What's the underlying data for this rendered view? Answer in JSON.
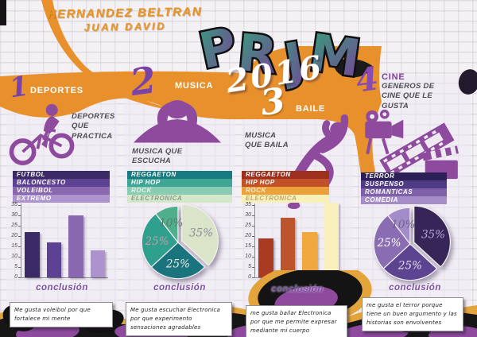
{
  "header": {
    "author_line1": "HERNANDEZ BELTRAN",
    "author_line2": "JUAN DAVID",
    "title": "PRJM",
    "year": "2016"
  },
  "sections": [
    {
      "number": "1",
      "name": "DEPORTES",
      "subtitle": "DEPORTES\nQUE\nPRACTICA",
      "items": [
        {
          "label": "FUTBOL",
          "bg": "#3c2a67",
          "fg": "#ffffff"
        },
        {
          "label": "BALONCESTO",
          "bg": "#5d4192",
          "fg": "#ffffff"
        },
        {
          "label": "VOLEIBOL",
          "bg": "#8a68b0",
          "fg": "#ffffff"
        },
        {
          "label": "EXTREMO",
          "bg": "#ad93ce",
          "fg": "#ffffff"
        }
      ],
      "conclusion_label": "conclusión",
      "note": "Me gusta voleibol por que fortalece mi mente"
    },
    {
      "number": "2",
      "name": "MUSICA",
      "subtitle": "MUSICA QUE\nESCUCHA",
      "items": [
        {
          "label": "REGGAETON",
          "bg": "#177b81",
          "fg": "#ffffff"
        },
        {
          "label": "HIP HOP",
          "bg": "#3fa695",
          "fg": "#ffffff"
        },
        {
          "label": "ROCK",
          "bg": "#8acbb4",
          "fg": "#e8f3ec"
        },
        {
          "label": "ELECTRONICA",
          "bg": "#d3e7c9",
          "fg": "#8a9a8a"
        }
      ],
      "conclusion_label": "conclusión",
      "note": "Me gusta escuchar Electronica por que experimento sensaciones agradables"
    },
    {
      "number": "3",
      "name": "BAILE",
      "subtitle": "MUSICA\nQUE BAILA",
      "items": [
        {
          "label": "REGGAETON",
          "bg": "#9c301c",
          "fg": "#ffffff"
        },
        {
          "label": "HIP HOP",
          "bg": "#c2512a",
          "fg": "#ffffff"
        },
        {
          "label": "ROCK",
          "bg": "#eca23b",
          "fg": "#f8ebc9"
        },
        {
          "label": "ELECTRONICA",
          "bg": "#f8efb9",
          "fg": "#bfa96d"
        }
      ],
      "conclusion_label": "conclusión",
      "note": "me gusta bailar Electronica por que me permite expresar mediante mi cuerpo"
    },
    {
      "number": "4",
      "name": "CINE",
      "subtitle": "GENEROS DE\nCINE QUE LE\nGUSTA",
      "items": [
        {
          "label": "TERROR",
          "bg": "#2c2157",
          "fg": "#ffffff"
        },
        {
          "label": "SUSPENSO",
          "bg": "#4f3c85",
          "fg": "#ffffff"
        },
        {
          "label": "ROMANTICAS",
          "bg": "#7e61a8",
          "fg": "#ffffff"
        },
        {
          "label": "COMEDIA",
          "bg": "#a68dc8",
          "fg": "#ffffff"
        }
      ],
      "conclusion_label": "conclusión",
      "note": "me gusta el terror porque tiene un buen argumento y las historias son envolventes"
    }
  ],
  "chart_data": [
    {
      "type": "bar",
      "section": "DEPORTES",
      "title": "",
      "values": [
        22,
        17,
        30,
        13
      ],
      "colors": [
        "#3c2a67",
        "#5d4192",
        "#8a68b0",
        "#ad93ce"
      ],
      "ylim": [
        0,
        35
      ],
      "yticks": [
        0,
        5,
        10,
        15,
        20,
        25,
        30,
        35
      ],
      "grid": false,
      "xlabel": "",
      "ylabel": ""
    },
    {
      "type": "pie",
      "section": "MUSICA",
      "title": "",
      "values": [
        35,
        25,
        25,
        10
      ],
      "labels": [
        "35%",
        "25%",
        "25%",
        "10%"
      ],
      "colors": [
        "#d9e4c9",
        "#19747e",
        "#2fa08d",
        "#4fae8c"
      ],
      "label_colors": [
        "#8c8c96",
        "#efe9dd",
        "#c79aa8",
        "#5f7a6c"
      ],
      "explode": 0,
      "start_angle": -90
    },
    {
      "type": "bar",
      "section": "BAILE",
      "title": "",
      "values": [
        19,
        29,
        22,
        36
      ],
      "colors": [
        "#a93b23",
        "#bc542c",
        "#f0a83e",
        "#f9f0bd"
      ],
      "ylim": [
        0,
        35
      ],
      "yticks": [
        0,
        5,
        10,
        15,
        20,
        25,
        30,
        35
      ],
      "grid": false,
      "xlabel": "",
      "ylabel": ""
    },
    {
      "type": "pie",
      "section": "CINE",
      "title": "",
      "values": [
        35,
        25,
        25,
        10
      ],
      "labels": [
        "35%",
        "25%",
        "25%",
        "10%"
      ],
      "colors": [
        "#372558",
        "#5d4490",
        "#8a6cb3",
        "#a48cc9"
      ],
      "label_colors": [
        "#b9a8d8",
        "#e6def2",
        "#ffffff",
        "#6f6385"
      ],
      "explode": 0,
      "start_angle": -90
    }
  ],
  "icons": {
    "sports": "bmx-rider-silhouette",
    "music": "headphones-listener-silhouette",
    "dance": "breakdancer-silhouette",
    "cinema": "film-camera-silhouette"
  },
  "colors": {
    "orange": "#e8912c",
    "purple": "#8e4b9e",
    "wall": "#f4f1f5",
    "graffiti_yellow": "#e2a43b",
    "graffiti_black": "#161616",
    "author_orange": "#e8941f",
    "title_gradient_start": "#35a07c",
    "title_gradient_end": "#7b3f98"
  }
}
